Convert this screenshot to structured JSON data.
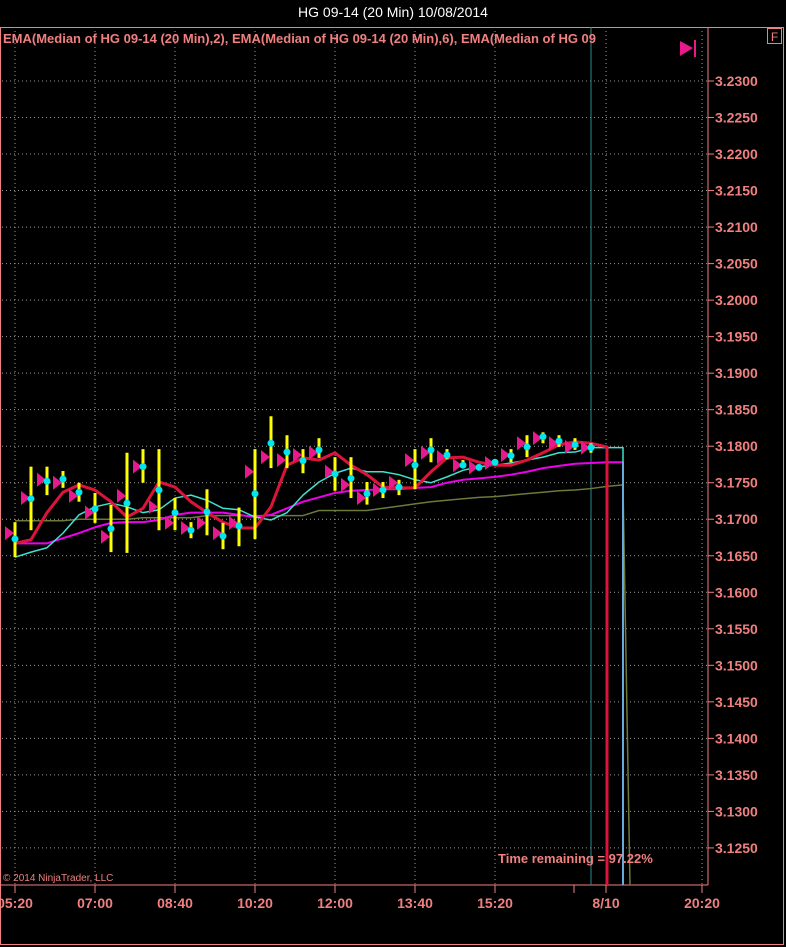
{
  "window": {
    "title": "HG 09-14 (20 Min)  10/08/2014"
  },
  "legend": "EMA(Median of HG 09-14 (20 Min),2), EMA(Median of HG 09-14 (20 Min),6), EMA(Median of HG 09",
  "f_button": "F",
  "scroll_end_icon": "skip-to-end-icon",
  "time_remaining": "Time remaining = 97.22%",
  "copyright": "© 2014 NinjaTrader, LLC",
  "colors": {
    "axis": "#f08080",
    "bar": "#ffff00",
    "open_marker": "#e8198c",
    "close_marker": "#00e5ee",
    "ema2": "#dc143c",
    "ema6": "#40e0d0",
    "ema3": "#ee00ee",
    "ema4": "#6b7a3a",
    "grid": "#9a9a9a",
    "current_bar_line": "#2a8a8a"
  },
  "chart_data": {
    "type": "ohlc",
    "y_ticks": [
      "3.2300",
      "3.2250",
      "3.2200",
      "3.2150",
      "3.2100",
      "3.2050",
      "3.2000",
      "3.1950",
      "3.1900",
      "3.1850",
      "3.1800",
      "3.1750",
      "3.1700",
      "3.1650",
      "3.1600",
      "3.1550",
      "3.1500",
      "3.1450",
      "3.1400",
      "3.1350",
      "3.1300",
      "3.1250"
    ],
    "ylim": [
      3.1205,
      3.237
    ],
    "x_ticks": [
      "05:20",
      "07:00",
      "08:40",
      "10:20",
      "12:00",
      "13:40",
      "15:20",
      "8/10",
      "20:20"
    ],
    "grid": true,
    "bars": {
      "open": [
        3.1681,
        3.1729,
        3.1754,
        3.175,
        3.1732,
        3.1709,
        3.1676,
        3.1732,
        3.1772,
        3.1717,
        3.1695,
        3.1688,
        3.1695,
        3.1681,
        3.1695,
        3.1765,
        3.1785,
        3.1781,
        3.1788,
        3.1791,
        3.1765,
        3.1747,
        3.1729,
        3.174,
        3.175,
        3.1781,
        3.1791,
        3.1785,
        3.1774,
        3.1771,
        3.1777,
        3.1788,
        3.1804,
        3.1811,
        3.1804,
        3.1799,
        3.1798
      ],
      "high": [
        3.1696,
        3.1772,
        3.1772,
        3.1766,
        3.175,
        3.1736,
        3.172,
        3.1791,
        3.1796,
        3.1796,
        3.1729,
        3.1696,
        3.1741,
        3.1695,
        3.1716,
        3.1796,
        3.1841,
        3.1815,
        3.1796,
        3.1811,
        3.1785,
        3.1785,
        3.1751,
        3.1751,
        3.1754,
        3.1796,
        3.1811,
        3.1796,
        3.1781,
        3.1774,
        3.1781,
        3.1796,
        3.1815,
        3.1819,
        3.1815,
        3.1811,
        3.1804
      ],
      "low": [
        3.1648,
        3.1685,
        3.1733,
        3.1743,
        3.1724,
        3.1695,
        3.1655,
        3.1654,
        3.175,
        3.1685,
        3.1685,
        3.1674,
        3.1678,
        3.1659,
        3.1663,
        3.1673,
        3.177,
        3.177,
        3.1763,
        3.1784,
        3.1739,
        3.1729,
        3.172,
        3.1729,
        3.1733,
        3.1741,
        3.1778,
        3.1782,
        3.177,
        3.1767,
        3.1774,
        3.1778,
        3.1785,
        3.1804,
        3.1799,
        3.1795,
        3.1791
      ],
      "close": [
        3.1673,
        3.1728,
        3.1752,
        3.1755,
        3.1737,
        3.1714,
        3.1687,
        3.1722,
        3.1772,
        3.174,
        3.1709,
        3.1685,
        3.171,
        3.1677,
        3.1691,
        3.1735,
        3.1804,
        3.1792,
        3.178,
        3.1795,
        3.1762,
        3.1756,
        3.1735,
        3.174,
        3.1744,
        3.1774,
        3.1795,
        3.1788,
        3.1774,
        3.1771,
        3.1778,
        3.1787,
        3.1799,
        3.1813,
        3.1807,
        3.1802,
        3.1798
      ]
    },
    "series": [
      {
        "name": "EMA(Median of HG 09-14 (20 Min),2)",
        "color": "#dc143c",
        "values": [
          3.1667,
          3.1672,
          3.1709,
          3.1737,
          3.1747,
          3.174,
          3.1724,
          3.1703,
          3.1715,
          3.1751,
          3.1744,
          3.1724,
          3.1709,
          3.1696,
          3.1688,
          3.1688,
          3.1717,
          3.1774,
          3.1784,
          3.1781,
          3.1791,
          3.1774,
          3.1761,
          3.1744,
          3.1743,
          3.1743,
          3.1765,
          3.1784,
          3.1785,
          3.1778,
          3.1774,
          3.1774,
          3.1781,
          3.1791,
          3.1802,
          3.1806,
          3.1804,
          3.1799
        ]
      },
      {
        "name": "EMA(Median of HG 09-14 (20 Min),6)",
        "color": "#40e0d0",
        "values": [
          3.1648,
          3.1655,
          3.1661,
          3.1681,
          3.1706,
          3.1717,
          3.1722,
          3.1717,
          3.1709,
          3.1713,
          3.1729,
          3.1733,
          3.1726,
          3.1715,
          3.1713,
          3.1703,
          3.1699,
          3.1709,
          3.1733,
          3.1751,
          3.1763,
          3.177,
          3.1765,
          3.1765,
          3.1761,
          3.1754,
          3.175,
          3.1758,
          3.1767,
          3.1772,
          3.1774,
          3.1777,
          3.1781,
          3.1785,
          3.1791,
          3.1792,
          3.1798,
          3.1798,
          3.1798
        ]
      },
      {
        "color": "#ee00ee",
        "values": [
          3.1667,
          3.1667,
          3.1667,
          3.1674,
          3.1681,
          3.1689,
          3.1695,
          3.1696,
          3.1696,
          3.1699,
          3.1706,
          3.1709,
          3.1709,
          3.1709,
          3.1706,
          3.1703,
          3.1706,
          3.1715,
          3.1724,
          3.173,
          3.1736,
          3.1739,
          3.174,
          3.1741,
          3.1741,
          3.1743,
          3.1744,
          3.175,
          3.1754,
          3.1756,
          3.1758,
          3.1761,
          3.1765,
          3.177,
          3.1773,
          3.1776,
          3.1777,
          3.1778,
          3.1778
        ]
      },
      {
        "color": "#6b7a3a",
        "values": [
          3.1698,
          3.1698,
          3.1698,
          3.1698,
          3.17,
          3.17,
          3.17,
          3.17,
          3.1702,
          3.1702,
          3.1702,
          3.1702,
          3.1705,
          3.1705,
          3.1705,
          3.1705,
          3.1705,
          3.1705,
          3.1705,
          3.1712,
          3.1712,
          3.1712,
          3.1712,
          3.1715,
          3.1718,
          3.1721,
          3.1724,
          3.1726,
          3.1728,
          3.173,
          3.1731,
          3.1733,
          3.1735,
          3.1737,
          3.1739,
          3.174,
          3.1742,
          3.1745,
          3.1747
        ]
      }
    ]
  }
}
